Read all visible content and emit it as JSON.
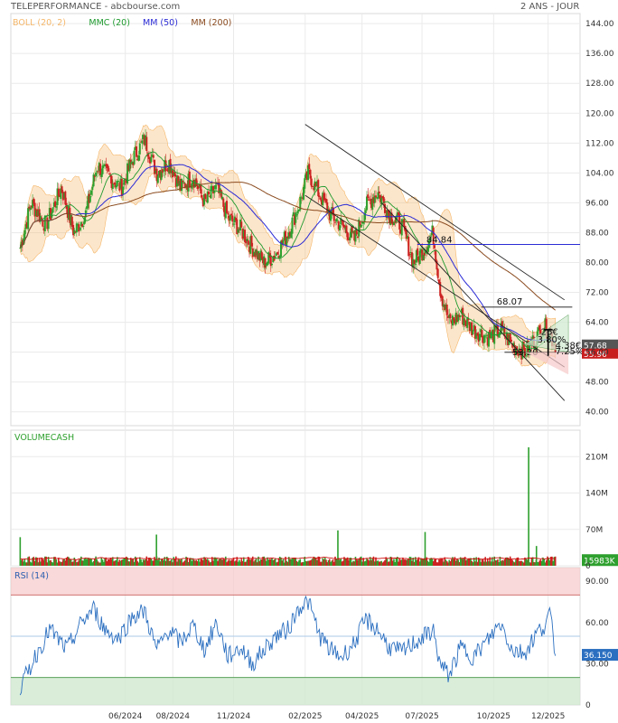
{
  "header": {
    "title": "TELEPERFORMANCE - abcbourse.com",
    "period": "2 ANS - JOUR"
  },
  "chart_data": [
    {
      "type": "line",
      "panel": "price",
      "legend": [
        "BOLL (20, 2)",
        "MMC (20)",
        "MM (50)",
        "MM (200)"
      ],
      "colors": {
        "boll": "#f5b76a",
        "mmc": "#1e9a2e",
        "mm50": "#2b2bd6",
        "mm200": "#8a4a1e",
        "up": "#2ea02e",
        "down": "#cc2222"
      },
      "ylim": [
        38,
        145
      ],
      "y_ticks": [
        "144.00",
        "136.00",
        "128.00",
        "120.00",
        "112.00",
        "104.00",
        "96.00",
        "88.00",
        "80.00",
        "72.00",
        "64.00",
        "56.00",
        "48.00",
        "40.00"
      ],
      "x_ticks": [
        "06/2024",
        "08/2024",
        "11/2024",
        "02/2025",
        "04/2025",
        "07/2025",
        "10/2025",
        "12/2025"
      ],
      "close_path": [
        [
          "2024-02-01",
          84
        ],
        [
          "2024-02-15",
          96
        ],
        [
          "2024-03-05",
          90
        ],
        [
          "2024-03-25",
          100
        ],
        [
          "2024-04-10",
          88
        ],
        [
          "2024-04-25",
          93
        ],
        [
          "2024-05-10",
          106
        ],
        [
          "2024-05-25",
          103
        ],
        [
          "2024-06-10",
          100
        ],
        [
          "2024-06-25",
          108
        ],
        [
          "2024-07-10",
          113
        ],
        [
          "2024-07-25",
          104
        ],
        [
          "2024-08-10",
          107
        ],
        [
          "2024-08-25",
          100
        ],
        [
          "2024-09-10",
          103
        ],
        [
          "2024-09-25",
          96
        ],
        [
          "2024-10-10",
          100
        ],
        [
          "2024-10-25",
          92
        ],
        [
          "2024-11-10",
          89
        ],
        [
          "2024-11-25",
          84
        ],
        [
          "2024-12-10",
          80
        ],
        [
          "2024-12-25",
          82
        ],
        [
          "2025-01-10",
          88
        ],
        [
          "2025-01-25",
          96
        ],
        [
          "2025-02-05",
          104
        ],
        [
          "2025-02-20",
          98
        ],
        [
          "2025-03-05",
          93
        ],
        [
          "2025-03-20",
          90
        ],
        [
          "2025-04-05",
          86
        ],
        [
          "2025-04-20",
          95
        ],
        [
          "2025-05-05",
          99
        ],
        [
          "2025-05-20",
          93
        ],
        [
          "2025-06-05",
          90
        ],
        [
          "2025-06-20",
          80
        ],
        [
          "2025-07-05",
          84
        ],
        [
          "2025-07-15",
          88
        ],
        [
          "2025-07-25",
          72
        ],
        [
          "2025-08-05",
          64
        ],
        [
          "2025-08-20",
          66
        ],
        [
          "2025-09-05",
          62
        ],
        [
          "2025-09-25",
          60
        ],
        [
          "2025-10-10",
          62
        ],
        [
          "2025-10-25",
          58
        ],
        [
          "2025-11-10",
          56
        ],
        [
          "2025-11-25",
          60
        ],
        [
          "2025-12-05",
          63
        ],
        [
          "2025-12-20",
          57.68
        ]
      ],
      "annotations": {
        "mm50_level": "84.84",
        "resistance": "68.07",
        "support": "55.96",
        "last_price": "57.68",
        "support_tag": "55.96",
        "target_move": "4.38€",
        "target_pct": "7.25%",
        "small_labels": [
          "26€",
          "3.80%",
          "53.20"
        ]
      },
      "mm50_level_value": 84.84,
      "resistance_value": 68.07,
      "support_value": 55.96,
      "last_price_value": 57.68,
      "channels": {
        "upper": [
          [
            "2025-02-01",
            117
          ],
          [
            "2025-12-31",
            70
          ]
        ],
        "middle": [
          [
            "2025-02-01",
            98
          ],
          [
            "2025-12-31",
            52
          ]
        ],
        "lower": [
          [
            "2025-05-10",
            96
          ],
          [
            "2025-12-31",
            43
          ]
        ]
      }
    },
    {
      "type": "bar",
      "panel": "volume",
      "title": "VOLUMECASH",
      "y_ticks": [
        "210M",
        "140M",
        "70M",
        "0"
      ],
      "ylim": [
        0,
        240
      ],
      "last_value": "15983K",
      "spikes": [
        [
          "2024-02-01",
          55
        ],
        [
          "2024-07-25",
          60
        ],
        [
          "2025-03-15",
          68
        ],
        [
          "2025-07-05",
          65
        ],
        [
          "2025-11-15",
          228
        ],
        [
          "2025-11-25",
          38
        ]
      ]
    },
    {
      "type": "line",
      "panel": "rsi",
      "title": "RSI (14)",
      "y_ticks": [
        "90.00",
        "60.00",
        "30.00",
        "0"
      ],
      "ylim": [
        0,
        100
      ],
      "overbought": 80,
      "oversold": 20,
      "last_value": "36.150",
      "values": [
        [
          "2024-02-01",
          12
        ],
        [
          "2024-02-20",
          35
        ],
        [
          "2024-03-10",
          55
        ],
        [
          "2024-04-01",
          40
        ],
        [
          "2024-04-20",
          60
        ],
        [
          "2024-05-05",
          70
        ],
        [
          "2024-05-20",
          55
        ],
        [
          "2024-06-05",
          48
        ],
        [
          "2024-06-25",
          65
        ],
        [
          "2024-07-10",
          68
        ],
        [
          "2024-07-25",
          40
        ],
        [
          "2024-08-10",
          55
        ],
        [
          "2024-08-25",
          45
        ],
        [
          "2024-09-10",
          58
        ],
        [
          "2024-09-25",
          40
        ],
        [
          "2024-10-10",
          60
        ],
        [
          "2024-10-25",
          35
        ],
        [
          "2024-11-10",
          42
        ],
        [
          "2024-11-25",
          30
        ],
        [
          "2024-12-10",
          40
        ],
        [
          "2024-12-25",
          50
        ],
        [
          "2025-01-10",
          55
        ],
        [
          "2025-01-25",
          72
        ],
        [
          "2025-02-05",
          75
        ],
        [
          "2025-02-20",
          50
        ],
        [
          "2025-03-05",
          40
        ],
        [
          "2025-03-20",
          35
        ],
        [
          "2025-04-05",
          45
        ],
        [
          "2025-04-20",
          62
        ],
        [
          "2025-05-05",
          55
        ],
        [
          "2025-05-20",
          42
        ],
        [
          "2025-06-05",
          38
        ],
        [
          "2025-06-20",
          45
        ],
        [
          "2025-07-05",
          50
        ],
        [
          "2025-07-15",
          55
        ],
        [
          "2025-07-25",
          28
        ],
        [
          "2025-08-05",
          22
        ],
        [
          "2025-08-20",
          42
        ],
        [
          "2025-09-05",
          35
        ],
        [
          "2025-09-25",
          48
        ],
        [
          "2025-10-10",
          60
        ],
        [
          "2025-10-25",
          40
        ],
        [
          "2025-11-10",
          38
        ],
        [
          "2025-11-25",
          52
        ],
        [
          "2025-12-05",
          58
        ],
        [
          "2025-12-12",
          66
        ],
        [
          "2025-12-20",
          36.15
        ]
      ]
    }
  ]
}
